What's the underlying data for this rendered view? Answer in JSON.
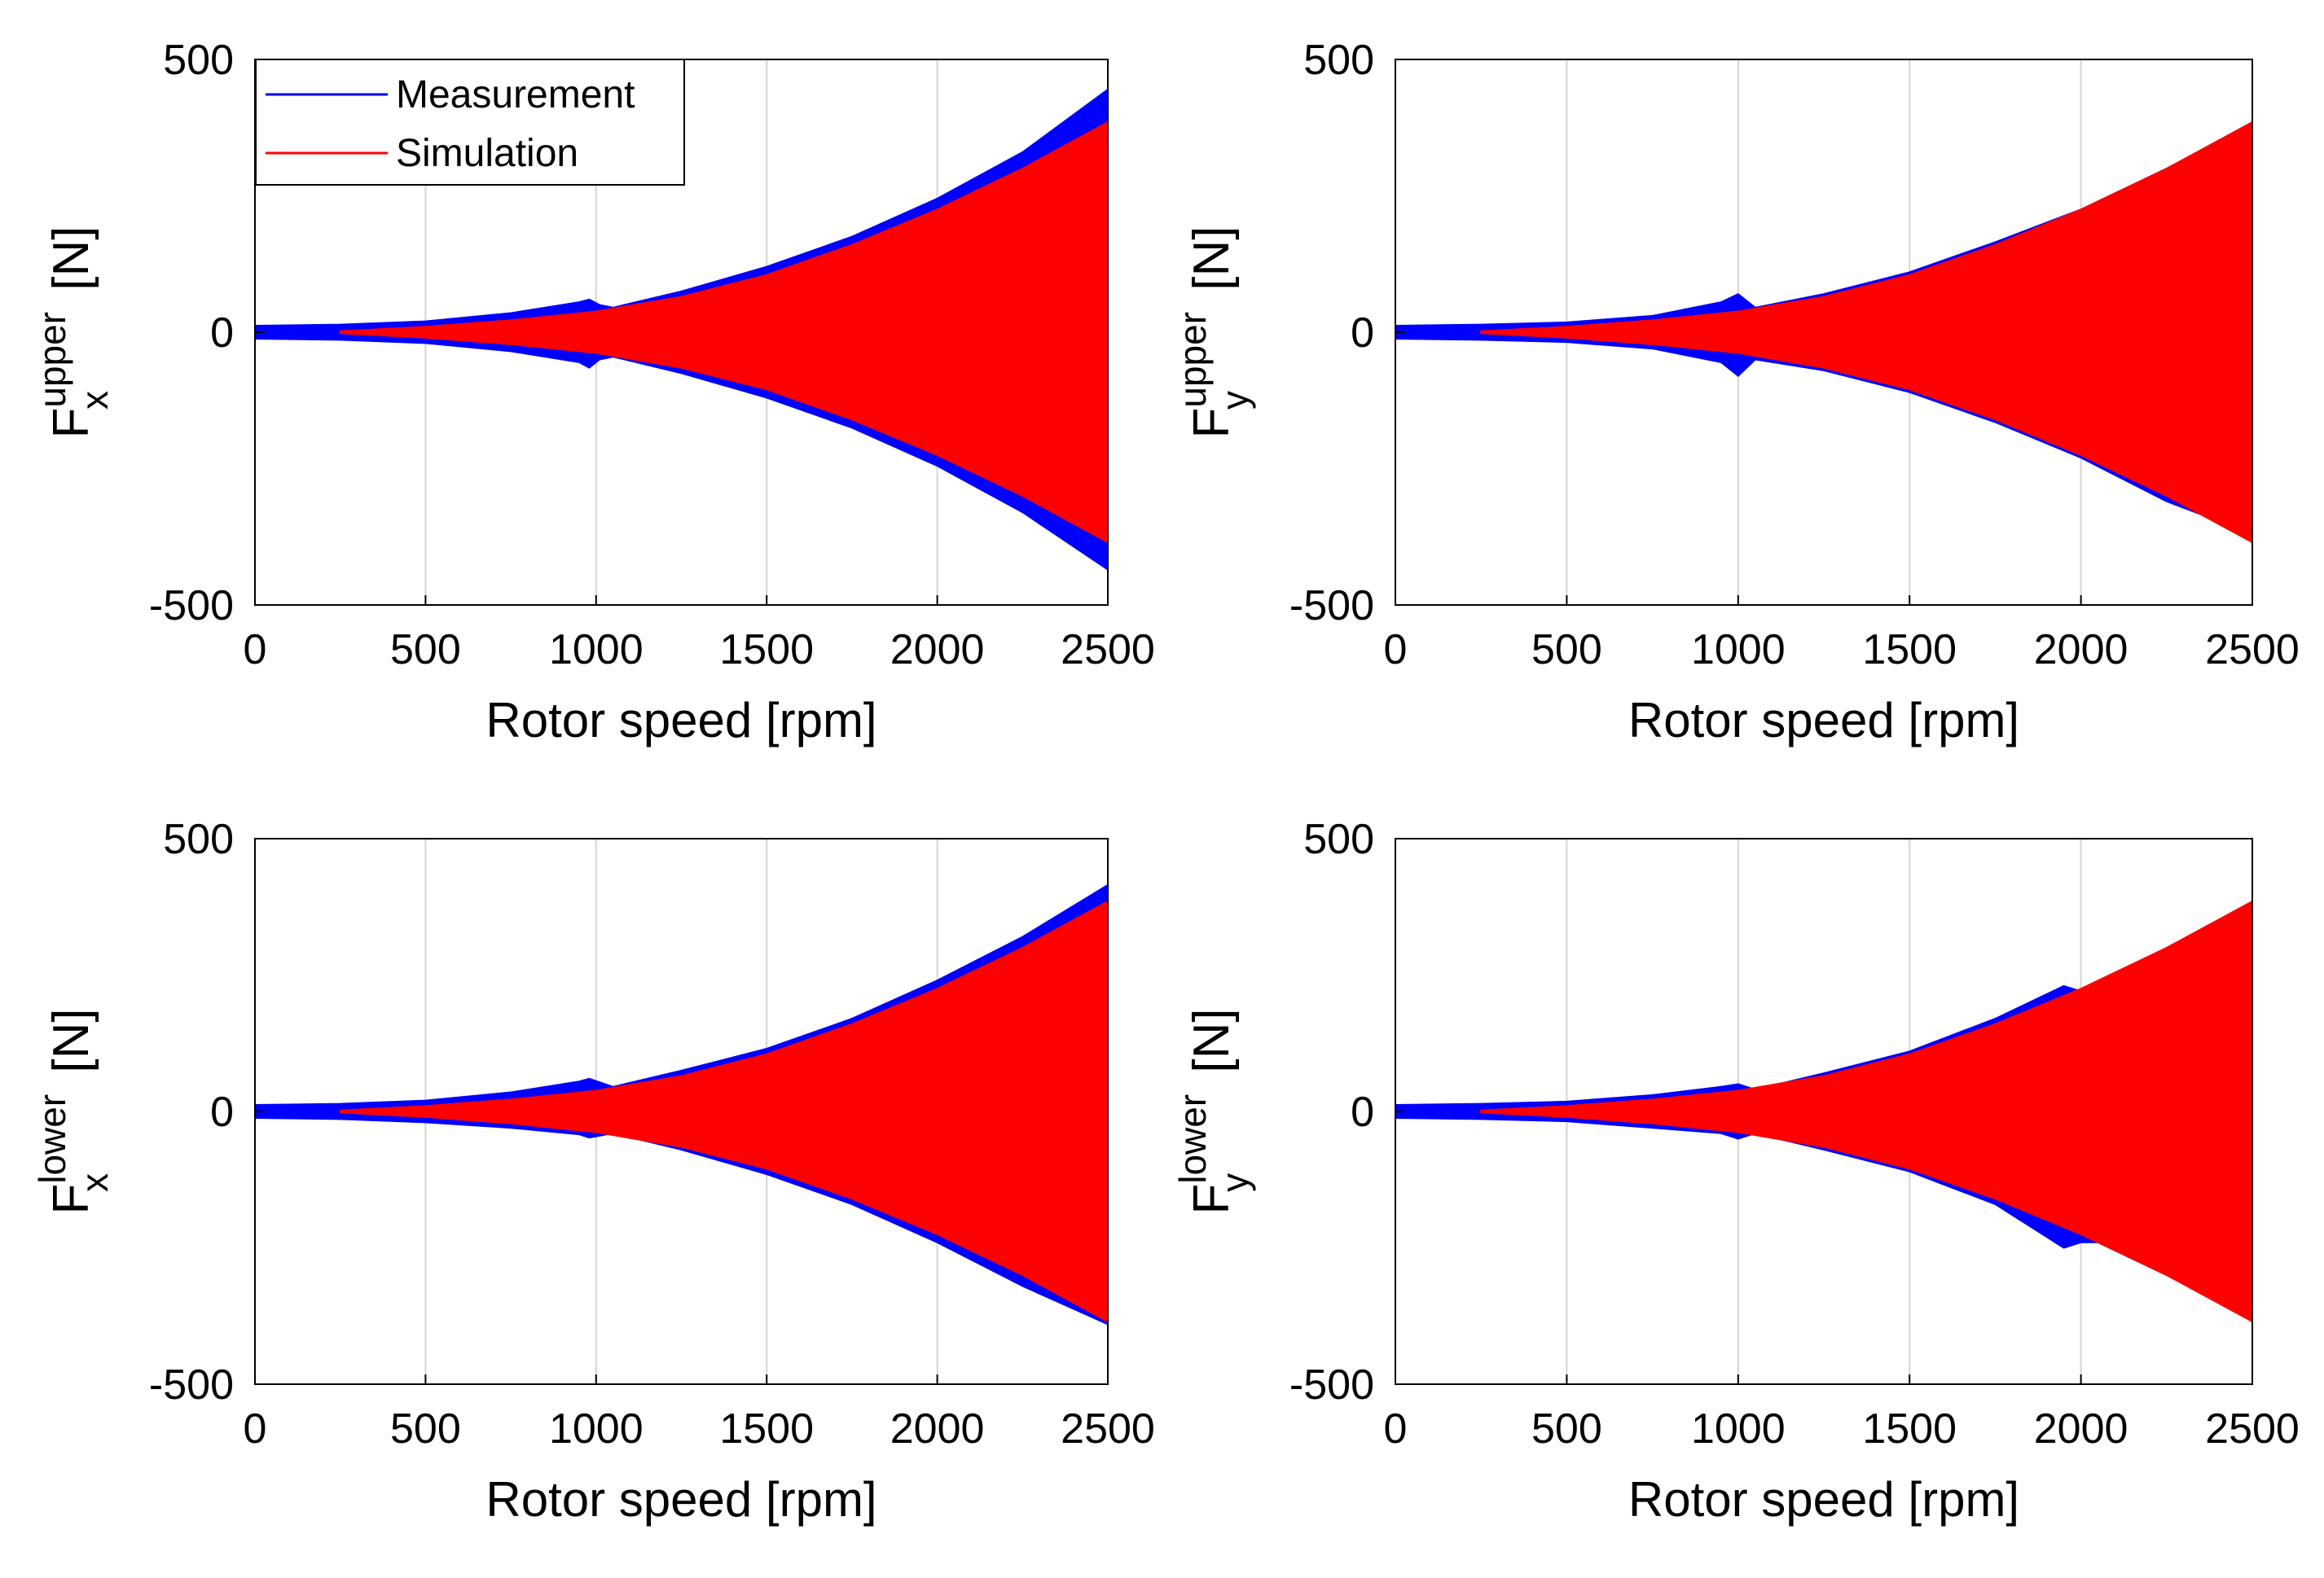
{
  "figure": {
    "legend": {
      "entries": [
        {
          "label": "Measurement",
          "color": "#0000ff"
        },
        {
          "label": "Simulation",
          "color": "#ff0000"
        }
      ]
    }
  },
  "chart_data": [
    {
      "type": "area",
      "panel": "upper-x",
      "ylabel": {
        "main": "F",
        "sup": "upper",
        "sub": "x",
        "unit": "[N]"
      },
      "xlabel": "Rotor speed [rpm]",
      "xlim": [
        0,
        2500
      ],
      "ylim": [
        -500,
        500
      ],
      "xticks": [
        0,
        500,
        1000,
        1500,
        2000,
        2500
      ],
      "yticks": [
        -500,
        0,
        500
      ],
      "grid": "vertical",
      "legend": "top-left",
      "series": [
        {
          "name": "Measurement",
          "color": "#0000ff",
          "x": [
            0,
            250,
            500,
            750,
            950,
            980,
            1010,
            1050,
            1250,
            1500,
            1750,
            2000,
            2250,
            2500
          ],
          "upper": [
            12,
            14,
            20,
            35,
            55,
            60,
            50,
            45,
            75,
            120,
            175,
            245,
            330,
            445
          ],
          "lower": [
            -12,
            -14,
            -20,
            -35,
            -55,
            -65,
            -50,
            -45,
            -75,
            -120,
            -175,
            -245,
            -330,
            -435
          ]
        },
        {
          "name": "Simulation",
          "color": "#ff0000",
          "x": [
            250,
            500,
            750,
            1000,
            1250,
            1500,
            1750,
            2000,
            2250,
            2500
          ],
          "upper": [
            2,
            10,
            22,
            38,
            65,
            105,
            160,
            225,
            300,
            385
          ],
          "lower": [
            -2,
            -10,
            -22,
            -38,
            -65,
            -105,
            -160,
            -225,
            -300,
            -385
          ]
        }
      ]
    },
    {
      "type": "area",
      "panel": "upper-y",
      "ylabel": {
        "main": "F",
        "sup": "upper",
        "sub": "y",
        "unit": "[N]"
      },
      "xlabel": "Rotor speed [rpm]",
      "xlim": [
        0,
        2500
      ],
      "ylim": [
        -500,
        500
      ],
      "xticks": [
        0,
        500,
        1000,
        1500,
        2000,
        2500
      ],
      "yticks": [
        -500,
        0,
        500
      ],
      "grid": "vertical",
      "series": [
        {
          "name": "Measurement",
          "color": "#0000ff",
          "x": [
            0,
            250,
            500,
            750,
            950,
            1000,
            1050,
            1250,
            1500,
            1750,
            2000,
            2250,
            2500
          ],
          "upper": [
            12,
            14,
            18,
            30,
            55,
            70,
            45,
            70,
            110,
            165,
            225,
            300,
            365
          ],
          "lower": [
            -12,
            -14,
            -18,
            -30,
            -55,
            -80,
            -50,
            -70,
            -110,
            -165,
            -230,
            -310,
            -370
          ]
        },
        {
          "name": "Simulation",
          "color": "#ff0000",
          "x": [
            250,
            500,
            750,
            1000,
            1250,
            1500,
            1750,
            2000,
            2250,
            2500
          ],
          "upper": [
            2,
            10,
            22,
            38,
            65,
            105,
            160,
            225,
            300,
            385
          ],
          "lower": [
            -2,
            -10,
            -22,
            -38,
            -65,
            -105,
            -160,
            -225,
            -300,
            -385
          ]
        }
      ]
    },
    {
      "type": "area",
      "panel": "lower-x",
      "ylabel": {
        "main": "F",
        "sup": "lower",
        "sub": "x",
        "unit": "[N]"
      },
      "xlabel": "Rotor speed [rpm]",
      "xlim": [
        0,
        2500
      ],
      "ylim": [
        -500,
        500
      ],
      "xticks": [
        0,
        500,
        1000,
        1500,
        2000,
        2500
      ],
      "yticks": [
        -500,
        0,
        500
      ],
      "grid": "vertical",
      "series": [
        {
          "name": "Measurement",
          "color": "#0000ff",
          "x": [
            0,
            250,
            500,
            750,
            950,
            980,
            1050,
            1250,
            1500,
            1750,
            2000,
            2250,
            2500
          ],
          "upper": [
            12,
            14,
            20,
            35,
            55,
            60,
            45,
            75,
            115,
            170,
            240,
            320,
            415
          ],
          "lower": [
            -12,
            -14,
            -20,
            -30,
            -42,
            -48,
            -40,
            -70,
            -115,
            -170,
            -240,
            -320,
            -390
          ]
        },
        {
          "name": "Simulation",
          "color": "#ff0000",
          "x": [
            250,
            500,
            750,
            1000,
            1250,
            1500,
            1750,
            2000,
            2250,
            2500
          ],
          "upper": [
            2,
            10,
            22,
            38,
            65,
            105,
            160,
            225,
            300,
            385
          ],
          "lower": [
            -2,
            -10,
            -22,
            -38,
            -65,
            -105,
            -160,
            -225,
            -300,
            -385
          ]
        }
      ]
    },
    {
      "type": "area",
      "panel": "lower-y",
      "ylabel": {
        "main": "F",
        "sup": "lower",
        "sub": "y",
        "unit": "[N]"
      },
      "xlabel": "Rotor speed [rpm]",
      "xlim": [
        0,
        2500
      ],
      "ylim": [
        -500,
        500
      ],
      "xticks": [
        0,
        500,
        1000,
        1500,
        2000,
        2500
      ],
      "yticks": [
        -500,
        0,
        500
      ],
      "grid": "vertical",
      "series": [
        {
          "name": "Measurement",
          "color": "#0000ff",
          "x": [
            0,
            250,
            500,
            750,
            950,
            1000,
            1050,
            1250,
            1500,
            1750,
            1950,
            2000,
            2050,
            2250,
            2500
          ],
          "upper": [
            12,
            14,
            18,
            30,
            45,
            50,
            40,
            70,
            110,
            170,
            230,
            220,
            230,
            290,
            300
          ],
          "lower": [
            -12,
            -14,
            -18,
            -30,
            -40,
            -50,
            -40,
            -70,
            -110,
            -170,
            -250,
            -240,
            -240,
            -300,
            -310
          ]
        },
        {
          "name": "Simulation",
          "color": "#ff0000",
          "x": [
            250,
            500,
            750,
            1000,
            1250,
            1500,
            1750,
            2000,
            2250,
            2500
          ],
          "upper": [
            2,
            10,
            22,
            38,
            65,
            105,
            160,
            225,
            300,
            385
          ],
          "lower": [
            -2,
            -10,
            -22,
            -38,
            -65,
            -105,
            -160,
            -225,
            -300,
            -385
          ]
        }
      ]
    }
  ]
}
